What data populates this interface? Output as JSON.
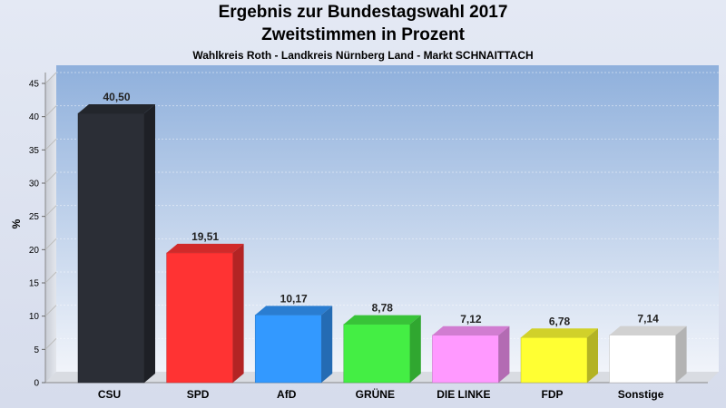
{
  "chart_data": {
    "type": "bar",
    "title": "Ergebnis zur Bundestagswahl 2017",
    "subtitle": "Zweitstimmen in Prozent",
    "subtitle2": "Wahlkreis Roth - Landkreis Nürnberg Land - Markt SCHNAITTACH",
    "ylabel": "%",
    "ylim": [
      0,
      45
    ],
    "yticks": [
      0,
      5,
      10,
      15,
      20,
      25,
      30,
      35,
      40,
      45
    ],
    "grid": true,
    "categories": [
      "CSU",
      "SPD",
      "AfD",
      "GRÜNE",
      "DIE LINKE",
      "FDP",
      "Sonstige"
    ],
    "values": [
      40.5,
      19.51,
      10.17,
      8.78,
      7.12,
      6.78,
      7.14
    ],
    "value_labels": [
      "40,50",
      "19,51",
      "10,17",
      "8,78",
      "7,12",
      "6,78",
      "7,14"
    ],
    "colors": [
      "#2b2e36",
      "#ff3333",
      "#3399ff",
      "#44ee44",
      "#ff99ff",
      "#ffff33",
      "#ffffff"
    ]
  }
}
